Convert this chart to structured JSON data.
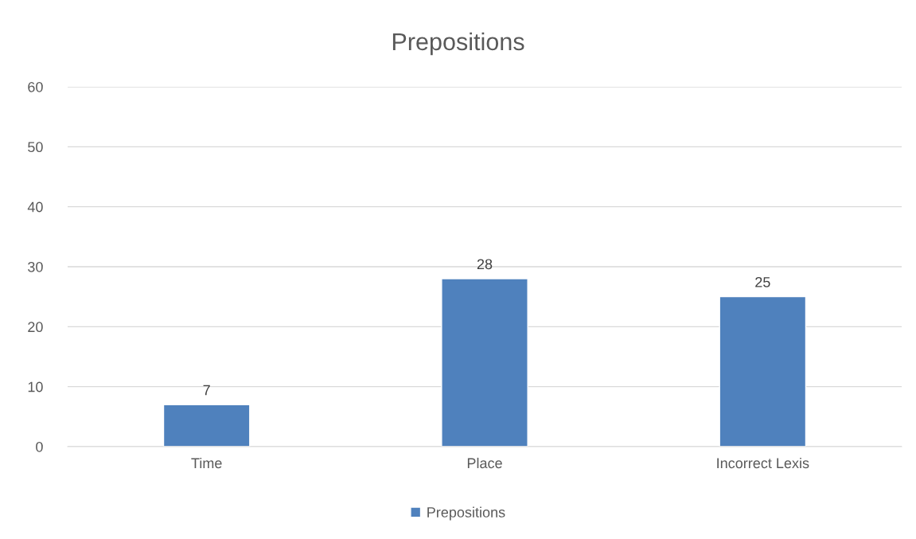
{
  "chart_data": {
    "type": "bar",
    "title": "Prepositions",
    "categories": [
      "Time",
      "Place",
      "Incorrect Lexis"
    ],
    "series": [
      {
        "name": "Prepositions",
        "color": "#4f81bd",
        "values": [
          7,
          28,
          25
        ]
      }
    ],
    "ylim": [
      0,
      60
    ],
    "yticks": [
      0,
      10,
      20,
      30,
      40,
      50,
      60
    ],
    "grid": "y",
    "legend": "bottom",
    "data_labels": true
  }
}
